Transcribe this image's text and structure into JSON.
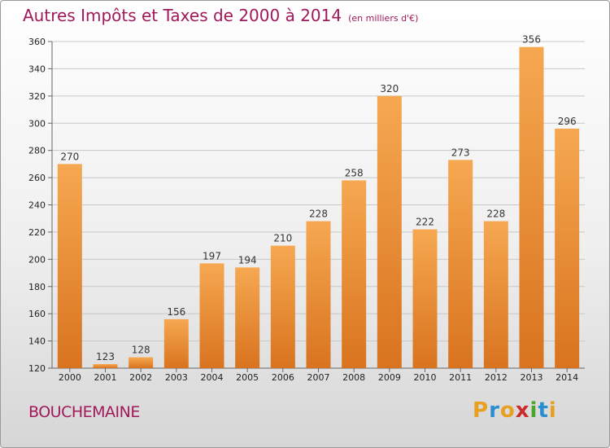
{
  "title": "Autres Impôts et Taxes de 2000 à 2014",
  "unit_note": "(en milliers d'€)",
  "commune": "BOUCHEMAINE",
  "logo": {
    "text": "Proxiti",
    "letters": [
      {
        "ch": "P",
        "color": "#e8a020"
      },
      {
        "ch": "r",
        "color": "#2a8fd0"
      },
      {
        "ch": "o",
        "color": "#e8a020"
      },
      {
        "ch": "x",
        "color": "#cc2b2b"
      },
      {
        "ch": "i",
        "color": "#4aa62a"
      },
      {
        "ch": "t",
        "color": "#2a8fd0"
      },
      {
        "ch": "i",
        "color": "#e8a020"
      }
    ]
  },
  "colors": {
    "accent": "#a0195a",
    "bar_light": "#f6a851",
    "bar_dark": "#d9731f",
    "grid": "#c8c8c8"
  },
  "chart_data": {
    "type": "bar",
    "categories": [
      "2000",
      "2001",
      "2002",
      "2003",
      "2004",
      "2005",
      "2006",
      "2007",
      "2008",
      "2009",
      "2010",
      "2011",
      "2012",
      "2013",
      "2014"
    ],
    "values": [
      270,
      123,
      128,
      156,
      197,
      194,
      210,
      228,
      258,
      320,
      222,
      273,
      228,
      356,
      296
    ],
    "ylim": [
      120,
      360
    ],
    "yticks": [
      120,
      140,
      160,
      180,
      200,
      220,
      240,
      260,
      280,
      300,
      320,
      340,
      360
    ],
    "grid": true,
    "xlabel": "",
    "ylabel": ""
  }
}
